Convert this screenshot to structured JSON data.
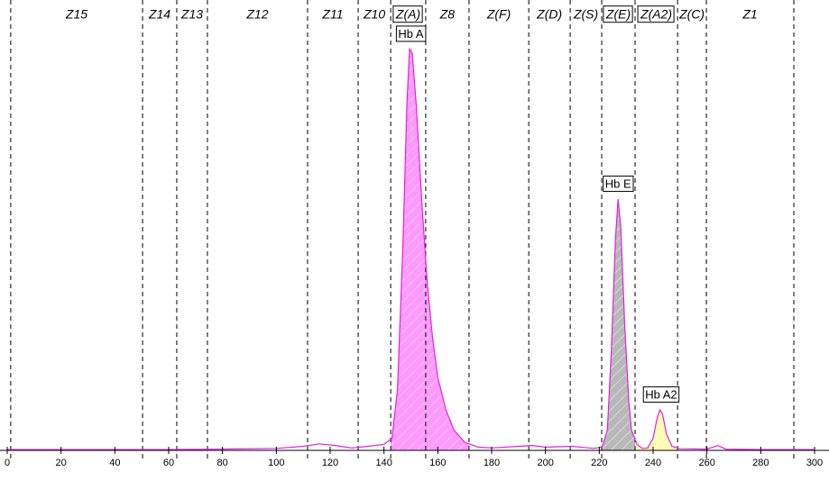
{
  "chart_data": {
    "type": "line",
    "color": "#e020e0",
    "x": [
      0,
      20,
      40,
      60,
      80,
      100,
      110,
      116,
      122,
      128,
      134,
      140,
      143,
      145,
      147,
      148.5,
      149.5,
      150.5,
      152,
      154,
      156,
      158,
      160,
      163,
      166,
      170,
      175,
      180,
      190,
      195,
      200,
      210,
      218,
      221,
      223,
      224.5,
      226,
      227,
      228,
      229.5,
      231,
      232,
      234,
      236,
      238,
      240,
      241.5,
      242.5,
      243.5,
      245,
      247,
      250,
      260,
      264,
      267,
      280,
      300
    ],
    "values": [
      0.2,
      0.2,
      0.2,
      0.2,
      0.3,
      0.5,
      1.0,
      1.6,
      1.2,
      0.6,
      1.0,
      1.5,
      3,
      15,
      50,
      85,
      99,
      98,
      85,
      62,
      42,
      28,
      18,
      10,
      5,
      2,
      0.8,
      0.6,
      1.0,
      1.2,
      0.8,
      1.0,
      0.5,
      0.8,
      5,
      25,
      52,
      62,
      55,
      30,
      12,
      5,
      1.5,
      0.5,
      0.6,
      3,
      8,
      10,
      9,
      4,
      1,
      0.4,
      0.3,
      1.2,
      0.3,
      0.2,
      0.2
    ],
    "xlim": [
      0,
      300
    ],
    "ylim": [
      0,
      100
    ],
    "xticks": [
      0,
      20,
      40,
      60,
      80,
      100,
      120,
      140,
      160,
      180,
      200,
      220,
      240,
      260,
      280,
      300
    ],
    "zone_bounds": [
      1.3,
      50.3,
      63,
      74.4,
      111.6,
      130.4,
      142.5,
      155.5,
      171.6,
      193.8,
      209.2,
      220.9,
      233.3,
      249.1,
      259.8,
      292.3
    ],
    "zones": [
      {
        "label": "Z15",
        "boxed": false
      },
      {
        "label": "Z14",
        "boxed": false
      },
      {
        "label": "Z13",
        "boxed": false
      },
      {
        "label": "Z12",
        "boxed": false
      },
      {
        "label": "Z11",
        "boxed": false
      },
      {
        "label": "Z10",
        "boxed": false
      },
      {
        "label": "Z(A)",
        "boxed": true
      },
      {
        "label": "Z8",
        "boxed": false
      },
      {
        "label": "Z(F)",
        "boxed": false
      },
      {
        "label": "Z(D)",
        "boxed": false
      },
      {
        "label": "Z(S)",
        "boxed": false
      },
      {
        "label": "Z(E)",
        "boxed": true
      },
      {
        "label": "Z(A2)",
        "boxed": true
      },
      {
        "label": "Z(C)",
        "boxed": false
      },
      {
        "label": "Z1",
        "boxed": false
      }
    ],
    "peaks": [
      {
        "name": "Hb A",
        "x": 150,
        "y": 99,
        "start": 142.5,
        "end": 171.6,
        "color": "#ff99ff"
      },
      {
        "name": "Hb E",
        "x": 227,
        "y": 62,
        "start": 220.9,
        "end": 233.3,
        "color": "#b8b8b8"
      },
      {
        "name": "Hb A2",
        "x": 243,
        "y": 10,
        "start": 233.3,
        "end": 249.1,
        "color": "#ffffb0"
      }
    ]
  }
}
